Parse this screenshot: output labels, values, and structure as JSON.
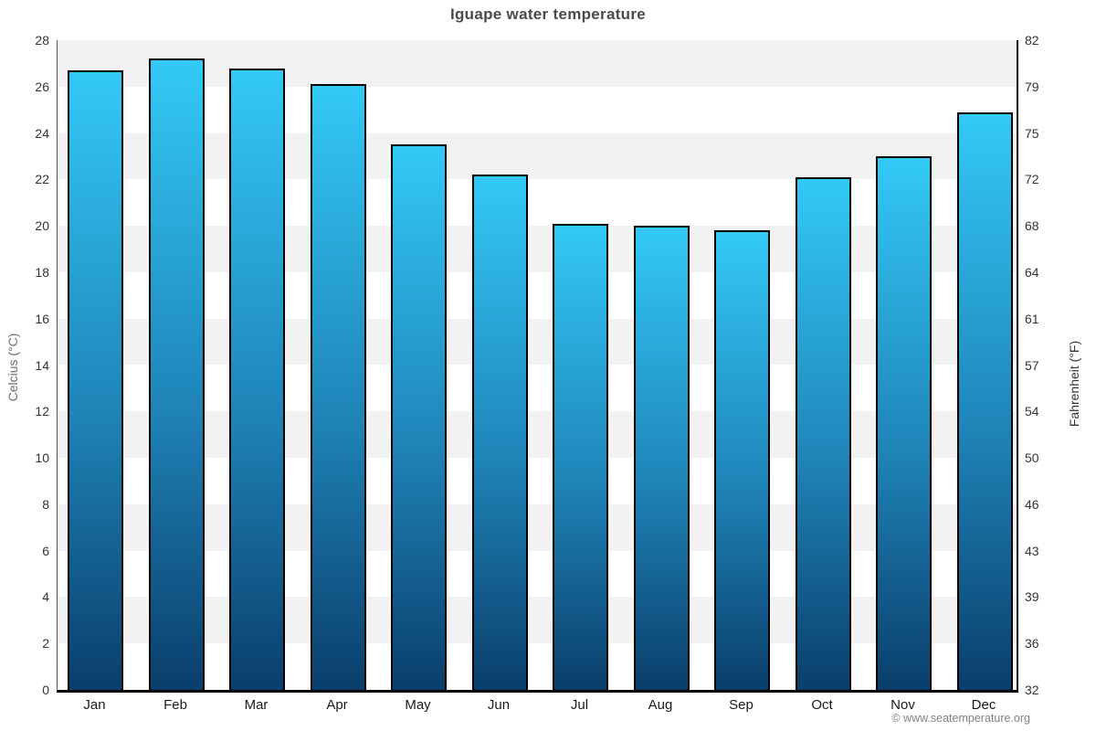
{
  "chart_data": {
    "type": "bar",
    "title": "Iguape water temperature",
    "categories": [
      "Jan",
      "Feb",
      "Mar",
      "Apr",
      "May",
      "Jun",
      "Jul",
      "Aug",
      "Sep",
      "Oct",
      "Nov",
      "Dec"
    ],
    "values": [
      26.7,
      27.2,
      26.8,
      26.1,
      23.5,
      22.2,
      20.1,
      20.0,
      19.8,
      22.1,
      23.0,
      24.9
    ],
    "xlabel": "",
    "ylabel_left": "Celcius (°C)",
    "ylabel_right": "Fahrenheit (°F)",
    "ylim": [
      0,
      28
    ],
    "ytick_step": 2,
    "yticks_celsius": [
      0,
      2,
      4,
      6,
      8,
      10,
      12,
      14,
      16,
      18,
      20,
      22,
      24,
      26,
      28
    ],
    "yticks_fahrenheit": [
      32,
      36,
      39,
      43,
      46,
      50,
      54,
      57,
      61,
      64,
      68,
      72,
      75,
      79,
      82
    ],
    "legend": "none",
    "grid": "alternating horizontal bands",
    "colors": {
      "bar_gradient_top": "#33c9f7",
      "bar_gradient_bottom": "#0a3e6b",
      "bar_border": "#000000",
      "band_gray": "#f2f2f2",
      "band_white": "#ffffff"
    }
  },
  "footer": {
    "copyright": "© www.seatemperature.org"
  }
}
